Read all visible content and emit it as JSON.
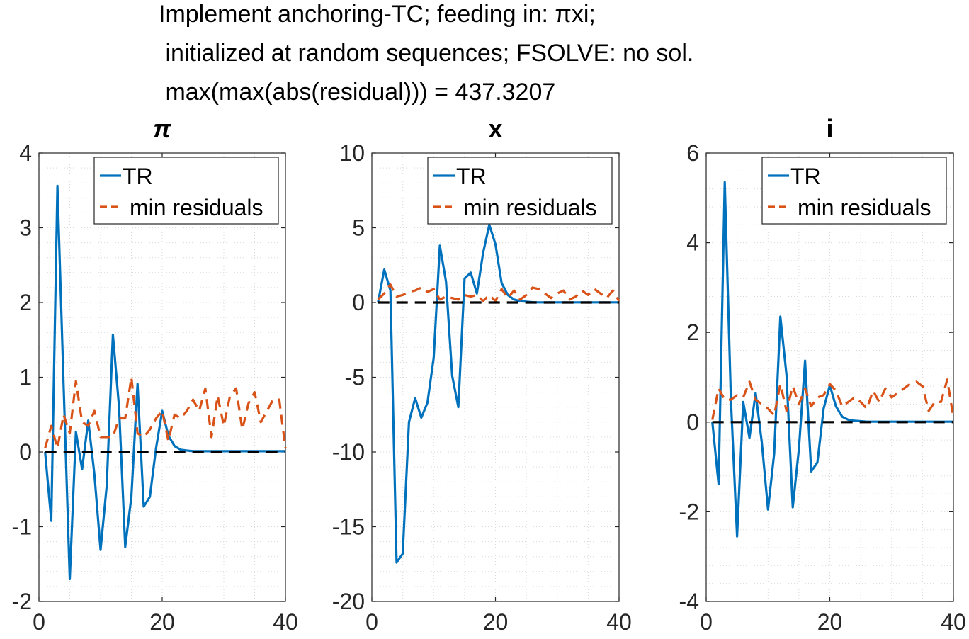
{
  "figure": {
    "title_lines": [
      "Implement anchoring-TC; feeding in: πxi;",
      " initialized at random sequences; FSOLVE: no sol.",
      " max(max(abs(residual))) = 437.3207"
    ]
  },
  "colors": {
    "tr": "#0072BD",
    "minres": "#D95319",
    "zero": "#000000",
    "grid": "#d9d9d9"
  },
  "chart_data": [
    {
      "type": "line",
      "title": "π",
      "xlim": [
        0,
        40
      ],
      "ylim": [
        -2,
        4
      ],
      "xticks": [
        0,
        20,
        40
      ],
      "yticks": [
        -2,
        -1,
        0,
        1,
        2,
        3,
        4
      ],
      "grid": "minor dotted",
      "legend": {
        "position": "top-right",
        "entries": [
          "TR",
          "min residuals"
        ]
      },
      "series": [
        {
          "name": "TR",
          "style": "solid",
          "x": [
            1,
            2,
            3,
            4,
            5,
            6,
            7,
            8,
            9,
            10,
            11,
            12,
            13,
            14,
            15,
            16,
            17,
            18,
            19,
            20,
            21,
            22,
            23,
            24,
            25,
            26,
            27,
            28,
            29,
            30,
            31,
            32,
            33,
            34,
            35,
            36,
            37,
            38,
            39,
            40
          ],
          "y": [
            0.0,
            -0.92,
            3.56,
            0.9,
            -1.7,
            0.27,
            -0.23,
            0.42,
            -0.3,
            -1.31,
            -0.45,
            1.57,
            0.6,
            -1.27,
            -0.6,
            0.91,
            -0.73,
            -0.6,
            0.05,
            0.55,
            0.22,
            0.08,
            0.03,
            0.02,
            0.01,
            0.01,
            0.01,
            0.01,
            0.01,
            0.01,
            0.01,
            0.01,
            0.01,
            0.01,
            0.01,
            0.01,
            0.01,
            0.01,
            0.01,
            0.01
          ]
        },
        {
          "name": "min residuals",
          "style": "dashed",
          "x": [
            1,
            2,
            3,
            4,
            5,
            6,
            7,
            8,
            9,
            10,
            11,
            12,
            13,
            14,
            15,
            16,
            17,
            18,
            19,
            20,
            21,
            22,
            23,
            24,
            25,
            26,
            27,
            28,
            29,
            30,
            31,
            32,
            33,
            34,
            35,
            36,
            37,
            38,
            39,
            40
          ],
          "y": [
            0.05,
            0.35,
            0.05,
            0.5,
            0.25,
            0.95,
            0.4,
            0.35,
            0.55,
            0.2,
            0.2,
            0.2,
            0.45,
            0.45,
            1.0,
            0.25,
            0.2,
            0.3,
            0.45,
            0.55,
            0.15,
            0.5,
            0.45,
            0.55,
            0.7,
            0.55,
            0.85,
            0.2,
            0.75,
            0.35,
            0.75,
            0.85,
            0.3,
            0.65,
            0.8,
            0.4,
            0.55,
            0.7,
            0.7,
            0.05
          ]
        },
        {
          "name": "",
          "style": "dashed-black",
          "x": [
            1,
            40
          ],
          "y": [
            0,
            0
          ]
        }
      ]
    },
    {
      "type": "line",
      "title": "x",
      "xlim": [
        0,
        40
      ],
      "ylim": [
        -20,
        10
      ],
      "xticks": [
        0,
        20,
        40
      ],
      "yticks": [
        -20,
        -15,
        -10,
        -5,
        0,
        5,
        10
      ],
      "grid": "minor dotted",
      "legend": {
        "position": "top-right",
        "entries": [
          "TR",
          "min residuals"
        ]
      },
      "series": [
        {
          "name": "TR",
          "style": "solid",
          "x": [
            1,
            2,
            3,
            4,
            5,
            6,
            7,
            8,
            9,
            10,
            11,
            12,
            13,
            14,
            15,
            16,
            17,
            18,
            19,
            20,
            21,
            22,
            23,
            24,
            25,
            26,
            27,
            28,
            29,
            30,
            31,
            32,
            33,
            34,
            35,
            36,
            37,
            38,
            39,
            40
          ],
          "y": [
            0.0,
            2.2,
            0.8,
            -17.4,
            -16.8,
            -8.0,
            -6.4,
            -7.7,
            -6.7,
            -3.7,
            3.8,
            1.4,
            -4.9,
            -7.0,
            1.6,
            2.0,
            0.6,
            3.3,
            5.2,
            3.9,
            1.3,
            0.5,
            0.2,
            0.1,
            0.05,
            0.02,
            0.01,
            0.01,
            0.01,
            0.01,
            0.01,
            0.01,
            0.01,
            0.01,
            0.01,
            0.01,
            0.01,
            0.01,
            0.01,
            0.01
          ]
        },
        {
          "name": "min residuals",
          "style": "dashed",
          "x": [
            1,
            2,
            3,
            4,
            5,
            6,
            7,
            8,
            9,
            10,
            11,
            12,
            13,
            14,
            15,
            16,
            17,
            18,
            19,
            20,
            21,
            22,
            23,
            24,
            25,
            26,
            27,
            28,
            29,
            30,
            31,
            32,
            33,
            34,
            35,
            36,
            37,
            38,
            39,
            40
          ],
          "y": [
            0.2,
            0.6,
            1.2,
            0.4,
            0.5,
            0.7,
            0.8,
            1.0,
            0.7,
            0.9,
            0.2,
            0.4,
            0.3,
            0.2,
            0.5,
            0.4,
            0.5,
            0.1,
            0.5,
            0.1,
            0.9,
            0.3,
            0.8,
            0.2,
            0.5,
            1.0,
            0.9,
            0.6,
            0.3,
            0.6,
            0.8,
            0.2,
            0.4,
            0.8,
            0.5,
            0.9,
            0.6,
            0.3,
            0.8,
            0.1
          ]
        },
        {
          "name": "",
          "style": "dashed-black",
          "x": [
            1,
            40
          ],
          "y": [
            0,
            0
          ]
        }
      ]
    },
    {
      "type": "line",
      "title": "i",
      "xlim": [
        0,
        40
      ],
      "ylim": [
        -4,
        6
      ],
      "xticks": [
        0,
        20,
        40
      ],
      "yticks": [
        -4,
        -2,
        0,
        2,
        4,
        6
      ],
      "grid": "minor dotted",
      "legend": {
        "position": "top-right",
        "entries": [
          "TR",
          "min residuals"
        ]
      },
      "series": [
        {
          "name": "TR",
          "style": "solid",
          "x": [
            1,
            2,
            3,
            4,
            5,
            6,
            7,
            8,
            9,
            10,
            11,
            12,
            13,
            14,
            15,
            16,
            17,
            18,
            19,
            20,
            21,
            22,
            23,
            24,
            25,
            26,
            27,
            28,
            29,
            30,
            31,
            32,
            33,
            34,
            35,
            36,
            37,
            38,
            39,
            40
          ],
          "y": [
            0.0,
            -1.38,
            5.35,
            0.5,
            -2.55,
            0.45,
            -0.35,
            0.65,
            -0.45,
            -1.95,
            -0.7,
            2.35,
            1.05,
            -1.9,
            -0.6,
            1.37,
            -1.1,
            -0.9,
            0.3,
            0.82,
            0.35,
            0.12,
            0.05,
            0.03,
            0.02,
            0.01,
            0.01,
            0.01,
            0.01,
            0.01,
            0.01,
            0.01,
            0.01,
            0.01,
            0.01,
            0.01,
            0.01,
            0.01,
            0.01,
            0.01
          ]
        },
        {
          "name": "min residuals",
          "style": "dashed",
          "x": [
            1,
            2,
            3,
            4,
            5,
            6,
            7,
            8,
            9,
            10,
            11,
            12,
            13,
            14,
            15,
            16,
            17,
            18,
            19,
            20,
            21,
            22,
            23,
            24,
            25,
            26,
            27,
            28,
            29,
            30,
            31,
            32,
            33,
            34,
            35,
            36,
            37,
            38,
            39,
            40
          ],
          "y": [
            0.05,
            0.75,
            0.5,
            0.5,
            0.6,
            0.55,
            0.9,
            0.5,
            0.4,
            0.3,
            0.15,
            0.85,
            0.25,
            0.8,
            0.4,
            0.75,
            0.35,
            0.55,
            0.6,
            0.85,
            0.7,
            0.35,
            0.45,
            0.55,
            0.45,
            0.3,
            0.7,
            0.45,
            0.75,
            0.55,
            0.65,
            0.75,
            0.85,
            0.9,
            0.8,
            0.25,
            0.45,
            0.45,
            0.95,
            0.1
          ]
        },
        {
          "name": "",
          "style": "dashed-black",
          "x": [
            1,
            40
          ],
          "y": [
            0,
            0
          ]
        }
      ]
    }
  ]
}
